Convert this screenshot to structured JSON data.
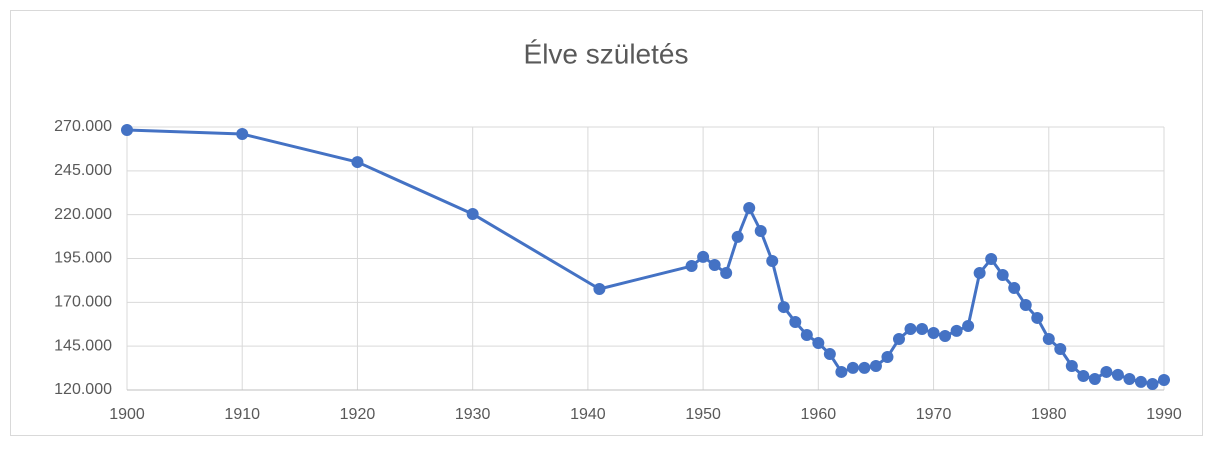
{
  "chart_data": {
    "type": "line",
    "title": "Élve születés",
    "x": [
      1900,
      1910,
      1920,
      1930,
      1941,
      1949,
      1950,
      1951,
      1952,
      1953,
      1954,
      1955,
      1956,
      1957,
      1958,
      1959,
      1960,
      1961,
      1962,
      1963,
      1964,
      1965,
      1966,
      1967,
      1968,
      1969,
      1970,
      1971,
      1972,
      1973,
      1974,
      1975,
      1976,
      1977,
      1978,
      1979,
      1980,
      1981,
      1982,
      1983,
      1984,
      1985,
      1986,
      1987,
      1988,
      1989,
      1990
    ],
    "series": [
      {
        "color": "#4472c4",
        "values": [
          268300,
          266000,
          250000,
          220400,
          177600,
          190700,
          195900,
          191300,
          186700,
          207300,
          223800,
          210700,
          193600,
          167300,
          158800,
          151400,
          146800,
          140500,
          130300,
          132600,
          132600,
          133700,
          138800,
          149100,
          154800,
          154800,
          152500,
          150800,
          153700,
          156500,
          186700,
          194700,
          185600,
          178200,
          168500,
          161100,
          149100,
          143400,
          133700,
          128000,
          126300,
          130300,
          128600,
          126300,
          124600,
          123400,
          125700
        ]
      }
    ],
    "xlim": [
      1900,
      1990
    ],
    "xticks": [
      1900,
      1910,
      1920,
      1930,
      1940,
      1950,
      1960,
      1970,
      1980,
      1990
    ],
    "ylim": [
      120000,
      270000
    ],
    "yticks": [
      {
        "value": 120000,
        "label": "120.000"
      },
      {
        "value": 145000,
        "label": "145.000"
      },
      {
        "value": 170000,
        "label": "170.000"
      },
      {
        "value": 195000,
        "label": "195.000"
      },
      {
        "value": 220000,
        "label": "220.000"
      },
      {
        "value": 245000,
        "label": "245.000"
      },
      {
        "value": 270000,
        "label": "270.000"
      }
    ],
    "grid": true
  }
}
